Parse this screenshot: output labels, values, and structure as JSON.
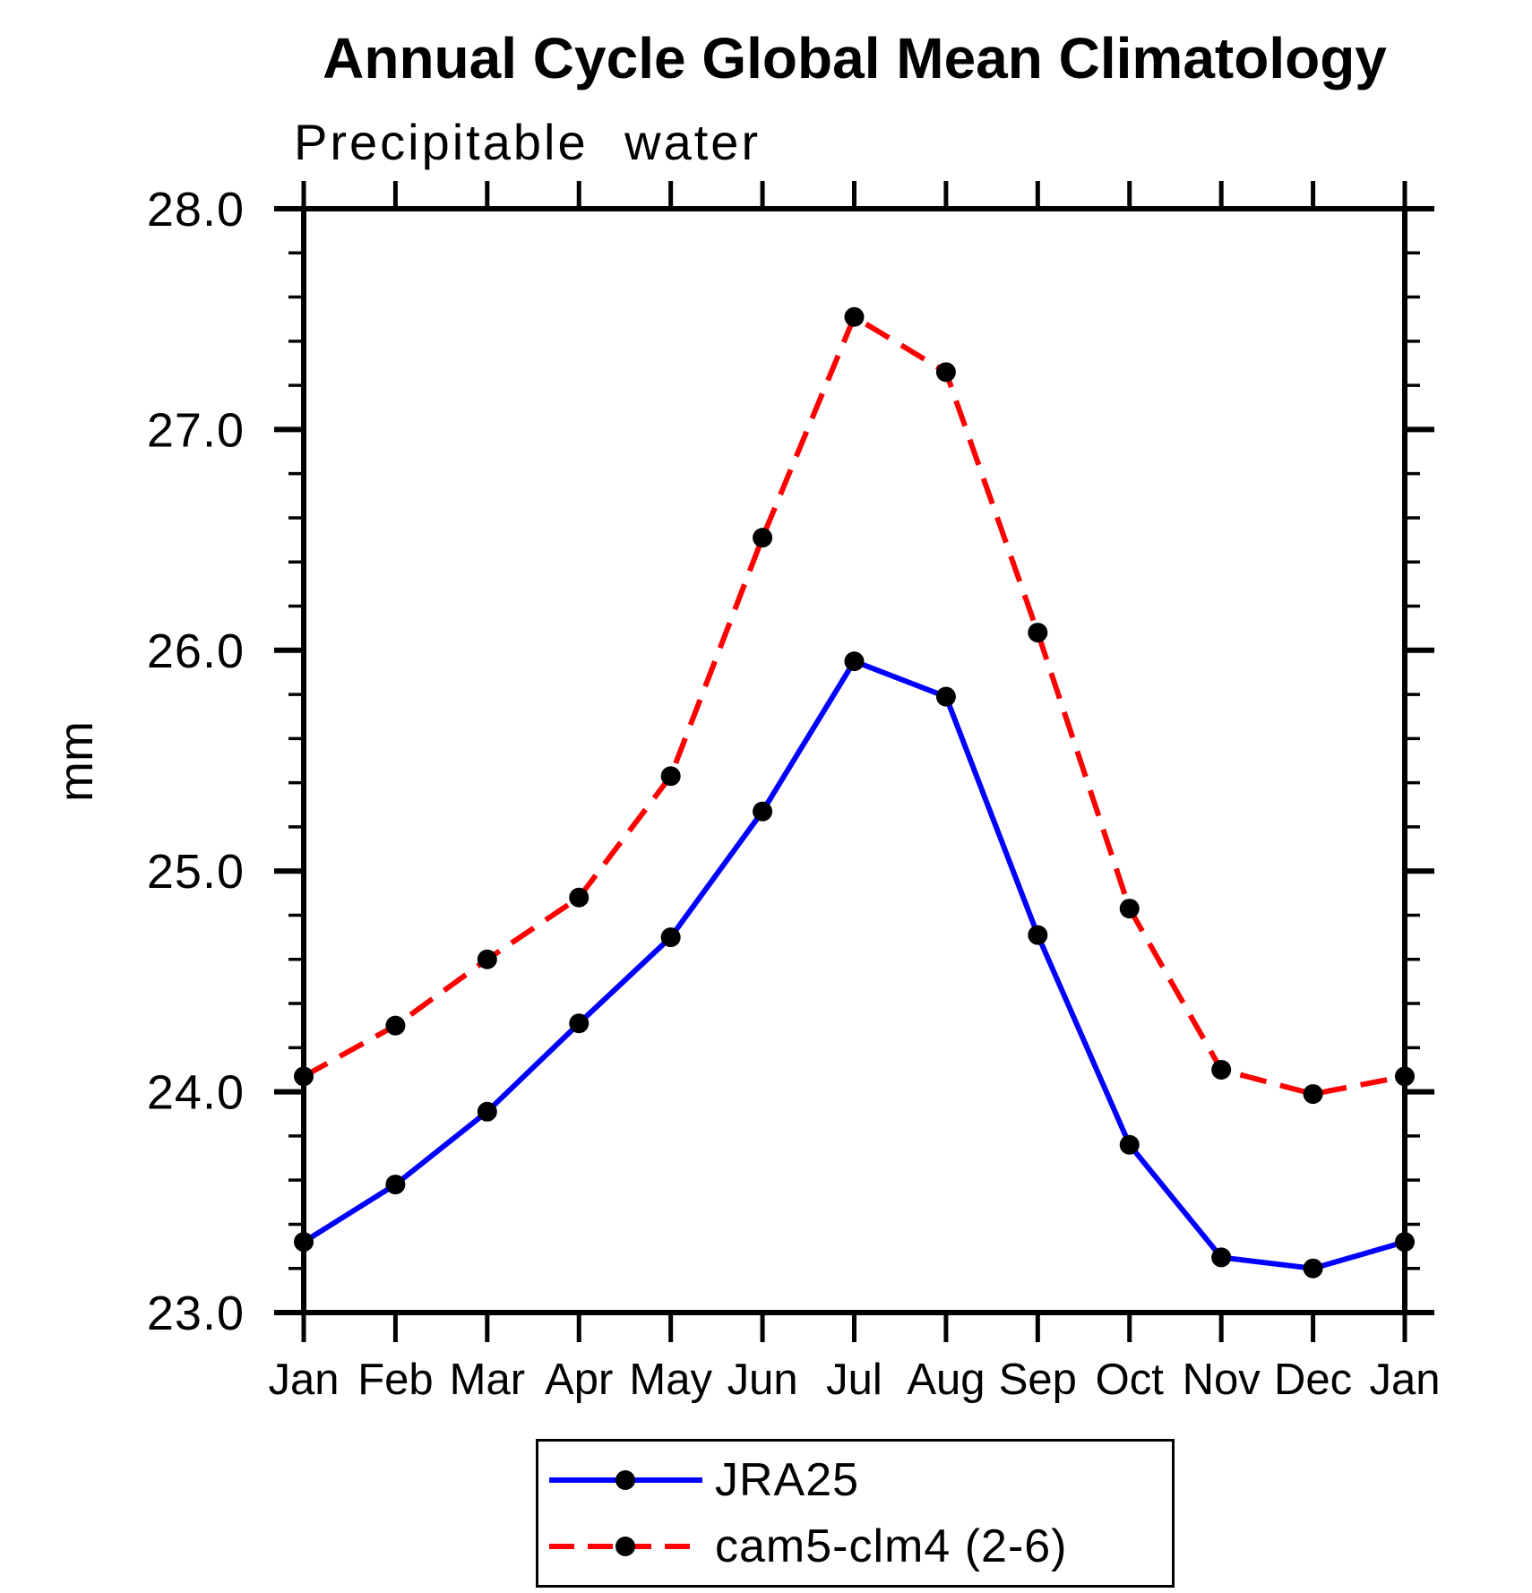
{
  "chart_data": {
    "type": "line",
    "title": "Annual Cycle Global Mean Climatology",
    "subtitle": "Precipitable water",
    "ylabel": "mm",
    "ylim": [
      23.0,
      28.0
    ],
    "ytick_values": [
      28.0,
      27.0,
      26.0,
      25.0,
      24.0,
      23.0
    ],
    "ytick_labels": [
      "28.0",
      "27.0",
      "26.0",
      "25.0",
      "24.0",
      "23.0"
    ],
    "yminor_step": 0.2,
    "categories": [
      "Jan",
      "Feb",
      "Mar",
      "Apr",
      "May",
      "Jun",
      "Jul",
      "Aug",
      "Sep",
      "Oct",
      "Nov",
      "Dec",
      "Jan"
    ],
    "series": [
      {
        "name": "JRA25",
        "color": "#0000ff",
        "style": "solid",
        "marker": "circle",
        "marker_color": "#000000",
        "values": [
          23.32,
          23.58,
          23.91,
          24.31,
          24.7,
          25.27,
          25.95,
          25.79,
          24.71,
          23.76,
          23.25,
          23.2,
          23.32
        ]
      },
      {
        "name": "cam5-clm4 (2-6)",
        "color": "#ff0000",
        "style": "dashed",
        "marker": "circle",
        "marker_color": "#000000",
        "values": [
          24.07,
          24.3,
          24.6,
          24.88,
          25.43,
          26.51,
          27.51,
          27.26,
          26.08,
          24.83,
          24.1,
          23.99,
          24.07
        ]
      }
    ],
    "legend_position": "bottom-center",
    "grid": false,
    "background": "#ffffff",
    "axis_color": "#000000"
  }
}
